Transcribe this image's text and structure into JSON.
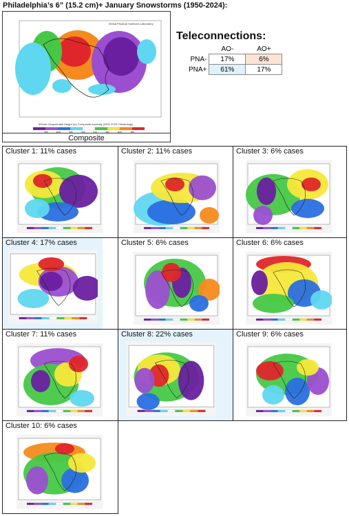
{
  "title": "Philadelphia’s 6” (15.2 cm)+ January Snowstorms (1950-2024):",
  "composite": {
    "caption": "Composite",
    "map_header": "NOAA Physical Sciences Laboratory",
    "map_subtitle": "500mb Geopotential Height (m) Composite Anomaly (1991-2020 Climatology)",
    "legend_ticks": [
      "-70",
      "-50",
      "-30",
      "-10",
      "10",
      "30",
      "50",
      "70"
    ]
  },
  "teleconnections": {
    "title": "Teleconnections:",
    "col_headers": [
      "AO-",
      "AO+"
    ],
    "rows": [
      {
        "label": "PNA-",
        "values": [
          "17%",
          "6%"
        ],
        "colors": [
          "#ffffff",
          "#fde3d6"
        ]
      },
      {
        "label": "PNA+",
        "values": [
          "61%",
          "17%"
        ],
        "colors": [
          "#dff1fb",
          "#ffffff"
        ]
      }
    ]
  },
  "clusters": [
    {
      "label": "Cluster 1: 11%  cases"
    },
    {
      "label": "Cluster 2: 11% cases"
    },
    {
      "label": "Cluster 3: 6% cases"
    },
    {
      "label": "Cluster 4: 17% cases"
    },
    {
      "label": "Cluster 5: 6% cases"
    },
    {
      "label": "Cluster 6: 6% cases"
    },
    {
      "label": "Cluster 7: 11% cases"
    },
    {
      "label": "Cluster 8: 22% cases"
    },
    {
      "label": "Cluster 9: 6% cases"
    },
    {
      "label": "Cluster 10: 6% cases"
    }
  ],
  "colors": {
    "purple": "#6a1fa0",
    "violet": "#9b4fd0",
    "blue": "#2a6fe0",
    "cyan": "#5fd7f0",
    "green": "#46c846",
    "yellow": "#f5e83a",
    "orange": "#f58a1e",
    "red": "#e0262a",
    "highlight": "#dff1fb"
  }
}
